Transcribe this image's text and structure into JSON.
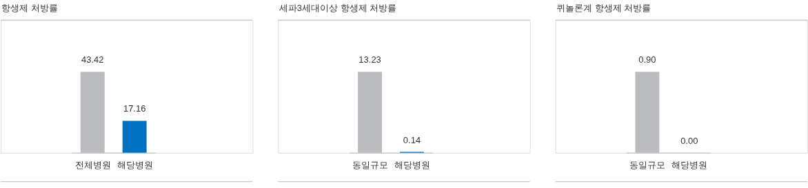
{
  "chart_data": [
    {
      "type": "bar",
      "title": "항생제 처방률",
      "categories": [
        "전체병원",
        "해당병원"
      ],
      "values": [
        43.42,
        17.16
      ],
      "colors": [
        "#bbbcc0",
        "#0070c0"
      ],
      "value_labels": [
        "43.42",
        "17.16"
      ]
    },
    {
      "type": "bar",
      "title": "세파3세대이상 항생제 처방률",
      "categories": [
        "동일규모",
        "해당병원"
      ],
      "values": [
        13.23,
        0.14
      ],
      "colors": [
        "#bbbcc0",
        "#0070c0"
      ],
      "value_labels": [
        "13.23",
        "0.14"
      ]
    },
    {
      "type": "bar",
      "title": "퀴놀론계 항생제 처방률",
      "categories": [
        "동일규모",
        "해당병원"
      ],
      "values": [
        0.9,
        0.0
      ],
      "colors": [
        "#bbbcc0",
        "#0070c0"
      ],
      "value_labels": [
        "0.90",
        "0.00"
      ]
    }
  ]
}
